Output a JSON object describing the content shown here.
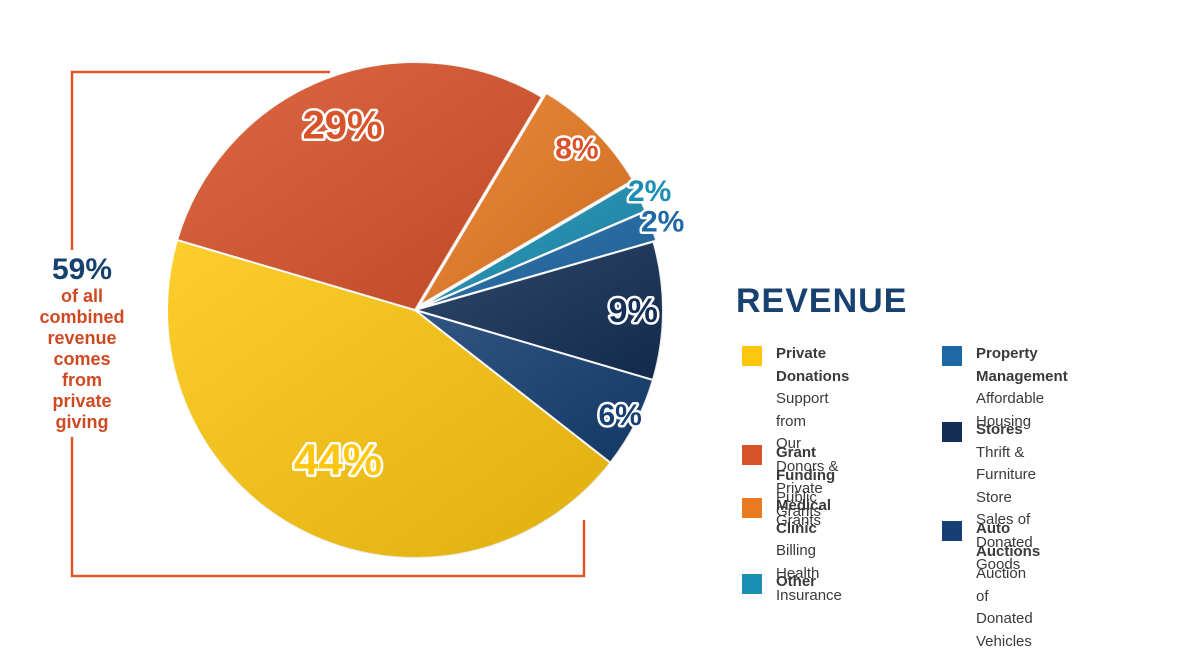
{
  "chart_data": {
    "type": "pie",
    "slices": [
      {
        "label": "Private Donations",
        "value": 44,
        "display": "44%",
        "color": "#fdc70f"
      },
      {
        "label": "Grant Funding",
        "value": 29,
        "display": "29%",
        "color": "#d9532a"
      },
      {
        "label": "Medical Clinic",
        "value": 8,
        "display": "8%",
        "color": "#e97a22"
      },
      {
        "label": "Other",
        "value": 2,
        "display": "2%",
        "color": "#1b8fb3"
      },
      {
        "label": "Property Management",
        "value": 2,
        "display": "2%",
        "color": "#1d68a5"
      },
      {
        "label": "Stores",
        "value": 9,
        "display": "9%",
        "color": "#142f55"
      },
      {
        "label": "Auto Auctions",
        "value": 6,
        "display": "6%",
        "color": "#163f73"
      }
    ]
  },
  "callout": {
    "value": "59%",
    "lines": [
      "of all",
      "combined",
      "revenue",
      "comes",
      "from",
      "private",
      "giving"
    ]
  },
  "legend": {
    "title": "REVENUE",
    "items": [
      {
        "name": "Private Donations",
        "desc": [
          "Support from",
          "Our Donors &",
          "Private Grants"
        ],
        "color": "#fdc70f"
      },
      {
        "name": "Grant Funding",
        "desc": [
          "Public Grants"
        ],
        "color": "#d9532a"
      },
      {
        "name": "Medical Clinic",
        "desc": [
          "Billing Health",
          "Insurance"
        ],
        "color": "#e97a22"
      },
      {
        "name": "Other",
        "desc": [],
        "color": "#1b8fb3"
      },
      {
        "name": [
          "Property",
          "Management"
        ],
        "desc": [
          "Affordable Housing"
        ],
        "color": "#1d68a5"
      },
      {
        "name": "Stores",
        "desc": [
          "Thrift & Furniture",
          "Store Sales of",
          "Donated Goods"
        ],
        "color": "#142f55"
      },
      {
        "name": "Auto Auctions",
        "desc": [
          "Auction of",
          "Donated Vehicles"
        ],
        "color": "#163f73"
      }
    ]
  },
  "colors": {
    "bracket": "#e0552b",
    "navy": "#17416f",
    "orange_text": "#cf4a22"
  }
}
